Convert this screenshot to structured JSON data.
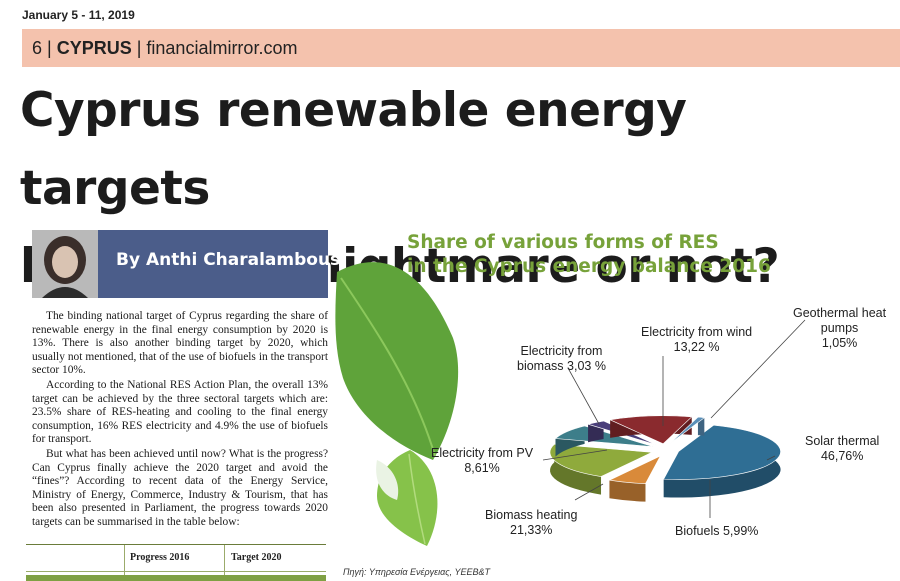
{
  "dateline": "January 5 - 11, 2019",
  "section": {
    "number": "6",
    "sep1": " | ",
    "name": "CYPRUS",
    "sep2": " | ",
    "site": "financialmirror.com"
  },
  "headline": {
    "line1": "Cyprus renewable energy targets",
    "line2": "by 2020: a nightmare or not?"
  },
  "byline": "By Anthi Charalambous",
  "body": [
    "The binding national target of Cyprus regarding the share of renewable energy in the final energy consumption by 2020 is 13%. There is also another binding target by 2020, which usually not mentioned, that of the use of biofuels in the transport sector 10%.",
    "According to the National RES Action Plan, the overall 13% target can be achieved by the three sectoral targets which are: 23.5% share of RES-heating and cooling to the final energy consumption, 16% RES electricity and 4.9% the use of biofuels for transport.",
    "But what has been achieved until now? What is the progress? Can Cyprus finally achieve the 2020 target and avoid the “fines”? According to recent data of the Energy Service, Ministry of Energy, Commerce, Industry & Tourism, that has been also presented in Parliament, the progress towards 2020 targets can be summarised in the table below:"
  ],
  "table": {
    "headers": [
      "",
      "Progress 2016",
      "Target 2020"
    ]
  },
  "chart_data": {
    "type": "pie",
    "title_line1": "Share of various forms of RES",
    "title_line2": "in the Cyprus energy balance 2016",
    "series": [
      {
        "name": "Solar thermal",
        "value": 46.76,
        "label": "46,76%",
        "color": "#2f6e94"
      },
      {
        "name": "Biofuels",
        "value": 5.99,
        "label": "5,99%",
        "color": "#d98a3a"
      },
      {
        "name": "Biomass heating",
        "value": 21.33,
        "label": "21,33%",
        "color": "#8faa3c"
      },
      {
        "name": "Electricity from PV",
        "value": 8.61,
        "label": "8,61%",
        "color": "#3d7e8a"
      },
      {
        "name": "Electricity from biomass",
        "value": 3.03,
        "label": "3,03 %",
        "color": "#4a3f7a"
      },
      {
        "name": "Electricity from wind",
        "value": 13.22,
        "label": "13,22 %",
        "color": "#8a2a2e"
      },
      {
        "name": "Geothermal heat pumps",
        "value": 1.05,
        "label": "1,05%",
        "color": "#5a8fb8"
      }
    ],
    "labels": {
      "solar": [
        "Solar thermal",
        "46,76%"
      ],
      "biofuels": "Biofuels 5,99%",
      "biomass_heat": [
        "Biomass heating",
        "21,33%"
      ],
      "pv": [
        "Electricity from PV",
        "8,61%"
      ],
      "el_biomass": [
        "Electricity from",
        "biomass 3,03 %"
      ],
      "wind": [
        "Electricity from wind",
        "13,22 %"
      ],
      "geo": [
        "Geothermal heat",
        "pumps",
        "1,05%"
      ]
    },
    "source": "Πηγή: Υπηρεσία Ενέργειας, ΥΕΕΒ&Τ"
  }
}
